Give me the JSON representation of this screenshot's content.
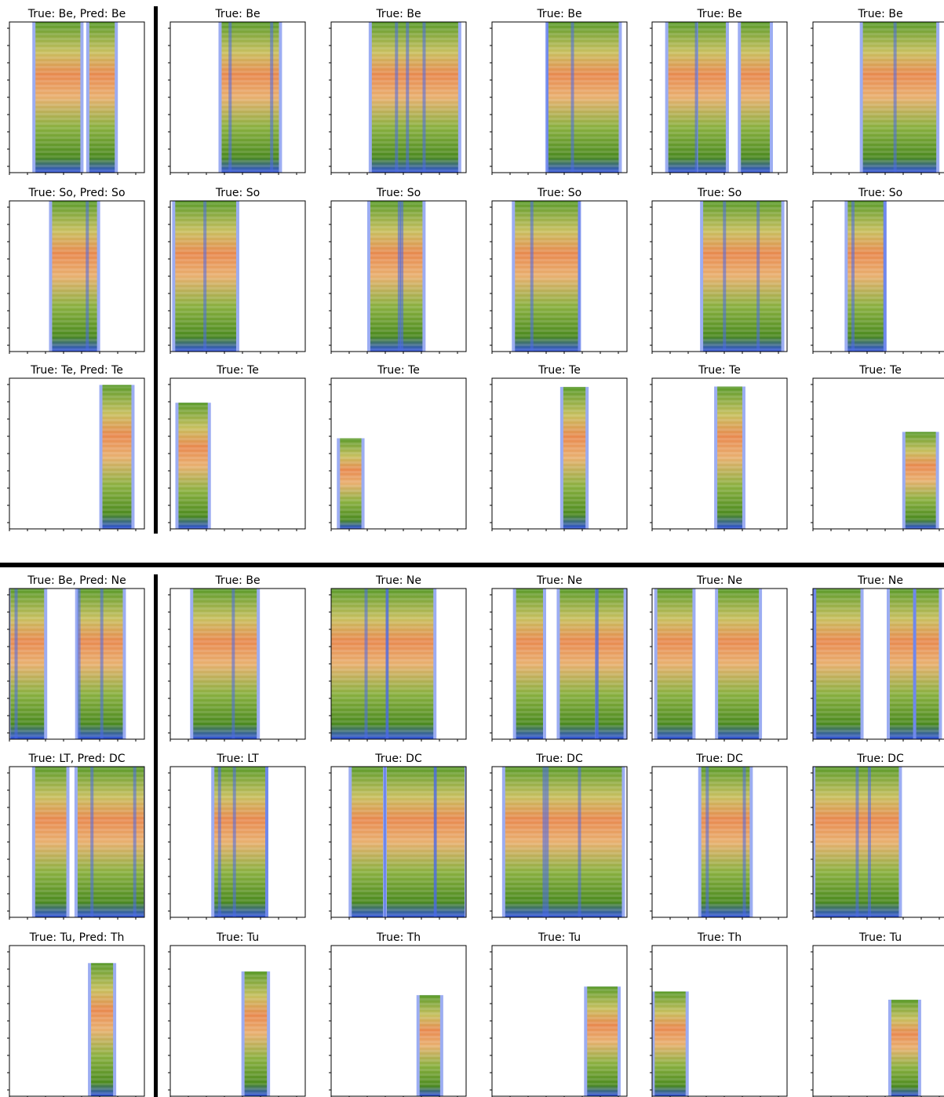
{
  "sections": [
    {
      "rows": [
        {
          "titles": [
            "True: Be, Pred: Be",
            "True: Be",
            "True: Be",
            "True: Be",
            "True: Be",
            "True: Be"
          ]
        },
        {
          "titles": [
            "True: So, Pred: So",
            "True: So",
            "True: So",
            "True: So",
            "True: So",
            "True: So"
          ]
        },
        {
          "titles": [
            "True: Te, Pred: Te",
            "True: Te",
            "True: Te",
            "True: Te",
            "True: Te",
            "True: Te"
          ]
        }
      ]
    },
    {
      "rows": [
        {
          "titles": [
            "True: Be, Pred: Ne",
            "True: Be",
            "True: Ne",
            "True: Ne",
            "True: Ne",
            "True: Ne"
          ]
        },
        {
          "titles": [
            "True: LT, Pred: DC",
            "True: LT",
            "True: DC",
            "True: DC",
            "True: DC",
            "True: DC"
          ]
        },
        {
          "titles": [
            "True: Tu, Pred: Th",
            "True: Tu",
            "True: Th",
            "True: Tu",
            "True: Th",
            "True: Tu"
          ]
        }
      ]
    }
  ]
}
